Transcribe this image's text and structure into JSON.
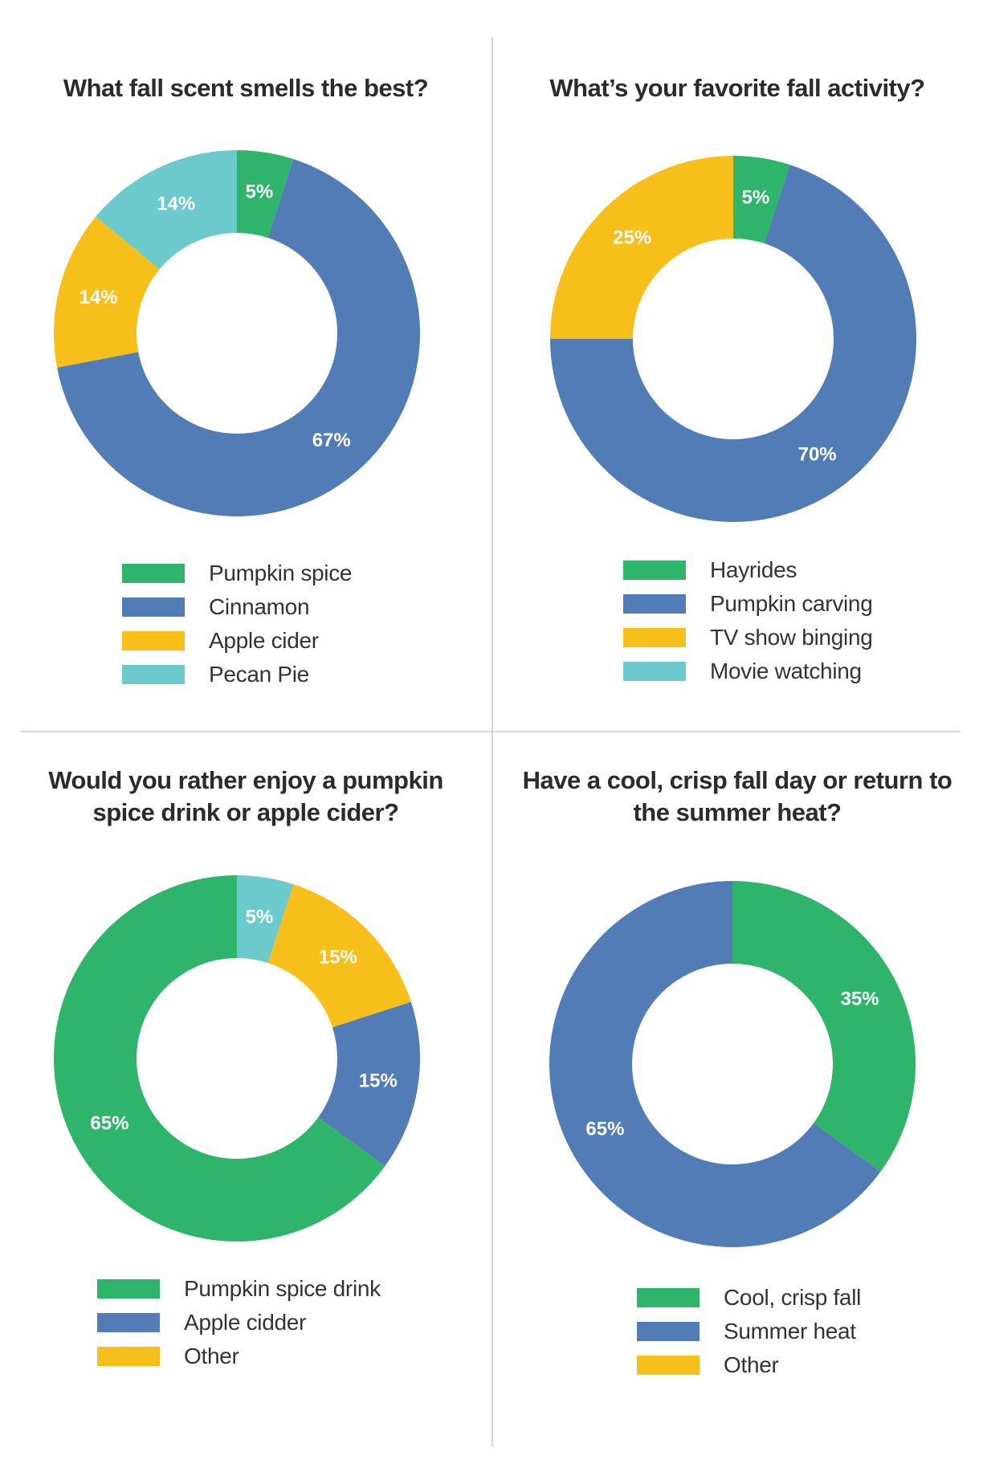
{
  "colors": {
    "green": "#2eb46b",
    "blue": "#527cb6",
    "yellow": "#f6bf1a",
    "teal": "#6cc9cc"
  },
  "chart_data": [
    {
      "type": "pie",
      "title": "What fall scent smells the best?",
      "slices": [
        {
          "label": "5%",
          "value": 5,
          "color": "green"
        },
        {
          "label": "67%",
          "value": 67,
          "color": "blue"
        },
        {
          "label": "14%",
          "value": 14,
          "color": "yellow"
        },
        {
          "label": "14%",
          "value": 14,
          "color": "teal"
        }
      ],
      "legend": [
        {
          "label": "Pumpkin spice",
          "color": "green"
        },
        {
          "label": "Cinnamon",
          "color": "blue"
        },
        {
          "label": "Apple cider",
          "color": "yellow"
        },
        {
          "label": "Pecan Pie",
          "color": "teal"
        }
      ]
    },
    {
      "type": "pie",
      "title": "What’s your favorite fall activity?",
      "slices": [
        {
          "label": "5%",
          "value": 5,
          "color": "green"
        },
        {
          "label": "70%",
          "value": 70,
          "color": "blue"
        },
        {
          "label": "25%",
          "value": 25,
          "color": "yellow"
        }
      ],
      "legend": [
        {
          "label": "Hayrides",
          "color": "green"
        },
        {
          "label": "Pumpkin carving",
          "color": "blue"
        },
        {
          "label": "TV show binging",
          "color": "yellow"
        },
        {
          "label": "Movie watching",
          "color": "teal"
        }
      ]
    },
    {
      "type": "pie",
      "title": "Would you rather enjoy a pumpkin spice drink or apple cider?",
      "slices": [
        {
          "label": "5%",
          "value": 5,
          "color": "teal"
        },
        {
          "label": "15%",
          "value": 15,
          "color": "yellow"
        },
        {
          "label": "15%",
          "value": 15,
          "color": "blue"
        },
        {
          "label": "65%",
          "value": 65,
          "color": "green"
        }
      ],
      "legend": [
        {
          "label": "Pumpkin spice drink",
          "color": "green"
        },
        {
          "label": "Apple cidder",
          "color": "blue"
        },
        {
          "label": "Other",
          "color": "yellow"
        }
      ]
    },
    {
      "type": "pie",
      "title": "Have a cool, crisp fall day or return to the summer heat?",
      "slices": [
        {
          "label": "35%",
          "value": 35,
          "color": "green"
        },
        {
          "label": "65%",
          "value": 65,
          "color": "blue"
        }
      ],
      "legend": [
        {
          "label": "Cool, crisp fall",
          "color": "green"
        },
        {
          "label": "Summer heat",
          "color": "blue"
        },
        {
          "label": "Other",
          "color": "yellow"
        }
      ]
    }
  ]
}
